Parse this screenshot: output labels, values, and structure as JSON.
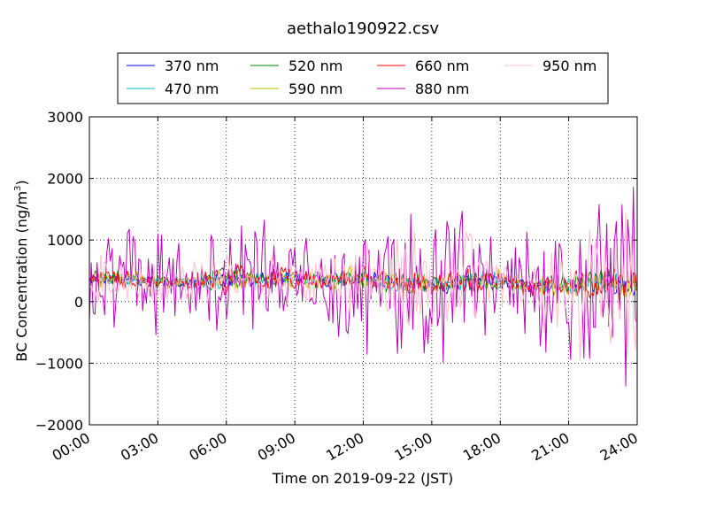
{
  "chart_data": {
    "type": "line",
    "title": "aethalo190922.csv",
    "xlabel": "Time on 2019-09-22 (JST)",
    "ylabel_main": "BC Concentration (ng/m",
    "ylabel_sup": "3",
    "ylabel_close": ")",
    "xlim": [
      0,
      24
    ],
    "ylim": [
      -2000,
      3000
    ],
    "grid": true,
    "legend_position": "top-center",
    "x_ticks": [
      {
        "v": 0,
        "label": "00:00"
      },
      {
        "v": 3,
        "label": "03:00"
      },
      {
        "v": 6,
        "label": "06:00"
      },
      {
        "v": 9,
        "label": "09:00"
      },
      {
        "v": 12,
        "label": "12:00"
      },
      {
        "v": 15,
        "label": "15:00"
      },
      {
        "v": 18,
        "label": "18:00"
      },
      {
        "v": 21,
        "label": "21:00"
      },
      {
        "v": 24,
        "label": "24:00"
      }
    ],
    "y_ticks": [
      {
        "v": 3000,
        "label": "3000"
      },
      {
        "v": 2000,
        "label": "2000"
      },
      {
        "v": 1000,
        "label": "1000"
      },
      {
        "v": 0,
        "label": "0"
      },
      {
        "v": -1000,
        "label": "−1000"
      },
      {
        "v": -2000,
        "label": "−2000"
      }
    ],
    "series": [
      {
        "name": "370 nm",
        "color": "#0000ff"
      },
      {
        "name": "470 nm",
        "color": "#00bfbf"
      },
      {
        "name": "520 nm",
        "color": "#008000"
      },
      {
        "name": "590 nm",
        "color": "#bfbf00"
      },
      {
        "name": "660 nm",
        "color": "#ff0000"
      },
      {
        "name": "880 nm",
        "color": "#bf00bf"
      },
      {
        "name": "950 nm",
        "color": "#ffc0cb"
      }
    ],
    "x_hours": [
      0,
      0.75,
      1.5,
      2.25,
      3,
      3.75,
      4.5,
      5.25,
      6,
      6.75,
      7.5,
      8.25,
      9,
      9.75,
      10.5,
      11.25,
      12,
      12.75,
      13.5,
      14.25,
      15,
      15.75,
      16.5,
      17.25,
      18,
      18.75,
      19.5,
      20.25,
      21,
      21.75,
      22.5,
      23.25,
      24
    ],
    "baseline": [
      340,
      380,
      360,
      350,
      330,
      300,
      310,
      330,
      380,
      390,
      360,
      370,
      380,
      360,
      350,
      380,
      390,
      330,
      300,
      270,
      270,
      270,
      330,
      350,
      330,
      280,
      260,
      260,
      270,
      290,
      330,
      290,
      260
    ],
    "envelope_880": [
      500,
      600,
      650,
      620,
      620,
      500,
      520,
      580,
      650,
      650,
      700,
      680,
      600,
      650,
      700,
      800,
      950,
      850,
      900,
      1000,
      1050,
      1000,
      900,
      750,
      600,
      550,
      700,
      800,
      900,
      1050,
      1300,
      1500,
      1400
    ],
    "envelope_950": [
      250,
      300,
      320,
      300,
      280,
      200,
      250,
      300,
      400,
      350,
      330,
      350,
      300,
      300,
      320,
      380,
      500,
      520,
      600,
      750,
      800,
      760,
      650,
      450,
      300,
      350,
      500,
      650,
      800,
      900,
      1050,
      1200,
      1100
    ],
    "envelope_short": [
      120,
      130,
      130,
      120,
      110,
      100,
      110,
      160,
      200,
      170,
      150,
      150,
      140,
      130,
      140,
      150,
      160,
      140,
      140,
      140,
      150,
      160,
      170,
      180,
      150,
      120,
      130,
      150,
      180,
      200,
      230,
      250,
      230
    ]
  }
}
